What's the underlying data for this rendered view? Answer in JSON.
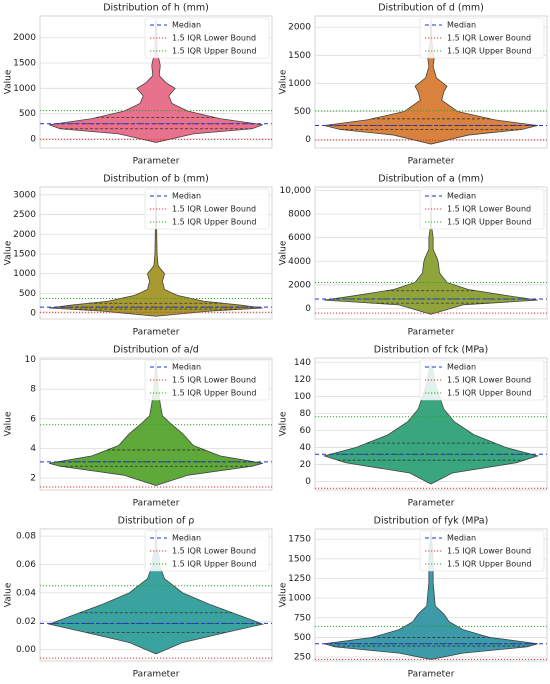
{
  "chart_data": [
    {
      "type": "violin",
      "title": "Distribution of h (mm)",
      "xlabel": "Parameter",
      "ylabel": "Value",
      "color": "#e8718b",
      "ylim": [
        -180,
        2430
      ],
      "yticks": [
        0,
        500,
        1000,
        1500,
        2000
      ],
      "grid": true,
      "legend": "upper right",
      "violin": {
        "y": [
          -70,
          100,
          200,
          280,
          400,
          550,
          700,
          850,
          1000,
          1100,
          1250,
          1450,
          1550,
          1700,
          2000,
          2350
        ],
        "width": [
          0,
          0.35,
          0.9,
          1,
          0.6,
          0.3,
          0.15,
          0.12,
          0.18,
          0.1,
          0.03,
          0.04,
          0.03,
          0.01,
          0.01,
          0
        ]
      },
      "quartiles": [
        200,
        300,
        420
      ],
      "lines": [
        {
          "name": "Median",
          "value": 300,
          "color": "#2233cc",
          "style": "dashed"
        },
        {
          "name": "1.5 IQR Lower Bound",
          "value": -10,
          "color": "#e03030",
          "style": "dotted"
        },
        {
          "name": "1.5 IQR Upper Bound",
          "value": 560,
          "color": "#30a030",
          "style": "dotted"
        }
      ]
    },
    {
      "type": "violin",
      "title": "Distribution of d (mm)",
      "xlabel": "Parameter",
      "ylabel": "Value",
      "color": "#d9823e",
      "ylim": [
        -150,
        2200
      ],
      "yticks": [
        0,
        500,
        1000,
        1500,
        2000
      ],
      "grid": true,
      "legend": "upper right",
      "violin": {
        "y": [
          -80,
          80,
          180,
          250,
          350,
          500,
          700,
          850,
          950,
          1100,
          1300,
          1450,
          1700,
          2150
        ],
        "width": [
          0,
          0.35,
          0.85,
          1,
          0.6,
          0.25,
          0.1,
          0.12,
          0.15,
          0.05,
          0.02,
          0.03,
          0.01,
          0
        ]
      },
      "quartiles": [
        180,
        250,
        370
      ],
      "lines": [
        {
          "name": "Median",
          "value": 250,
          "color": "#2233cc",
          "style": "dashed"
        },
        {
          "name": "1.5 IQR Lower Bound",
          "value": -10,
          "color": "#e03030",
          "style": "dotted"
        },
        {
          "name": "1.5 IQR Upper Bound",
          "value": 510,
          "color": "#30a030",
          "style": "dotted"
        }
      ]
    },
    {
      "type": "violin",
      "title": "Distribution of b (mm)",
      "xlabel": "Parameter",
      "ylabel": "Value",
      "color": "#a89a30",
      "ylim": [
        -150,
        3200
      ],
      "yticks": [
        0,
        500,
        1000,
        1500,
        2000,
        2500,
        3000
      ],
      "grid": true,
      "legend": "upper right",
      "violin": {
        "y": [
          -80,
          50,
          130,
          200,
          300,
          450,
          600,
          800,
          1000,
          1200,
          1500,
          3100
        ],
        "width": [
          0,
          0.5,
          1,
          0.8,
          0.45,
          0.2,
          0.08,
          0.06,
          0.08,
          0.02,
          0.01,
          0
        ]
      },
      "quartiles": [
        100,
        150,
        250
      ],
      "lines": [
        {
          "name": "Median",
          "value": 150,
          "color": "#2233cc",
          "style": "dashed"
        },
        {
          "name": "1.5 IQR Lower Bound",
          "value": 20,
          "color": "#e03030",
          "style": "dotted"
        },
        {
          "name": "1.5 IQR Upper Bound",
          "value": 370,
          "color": "#30a030",
          "style": "dotted"
        }
      ]
    },
    {
      "type": "violin",
      "title": "Distribution of a (mm)",
      "xlabel": "Parameter",
      "ylabel": "Value",
      "color": "#8fa53b",
      "ylim": [
        -900,
        10300
      ],
      "yticks": [
        0,
        2000,
        4000,
        6000,
        8000,
        {
          "value": 10000,
          "label": "10,000"
        }
      ],
      "grid": true,
      "legend": "upper right",
      "violin": {
        "y": [
          -500,
          300,
          700,
          1100,
          1600,
          2200,
          3000,
          3800,
          4200,
          5000,
          6000,
          7000,
          9800
        ],
        "width": [
          0,
          0.3,
          1,
          0.7,
          0.35,
          0.15,
          0.08,
          0.07,
          0.06,
          0.02,
          0.02,
          0.005,
          0
        ]
      },
      "quartiles": [
        450,
        800,
        1500
      ],
      "lines": [
        {
          "name": "Median",
          "value": 800,
          "color": "#2233cc",
          "style": "dashed"
        },
        {
          "name": "1.5 IQR Lower Bound",
          "value": -400,
          "color": "#e03030",
          "style": "dotted"
        },
        {
          "name": "1.5 IQR Upper Bound",
          "value": 2200,
          "color": "#30a030",
          "style": "dotted"
        }
      ]
    },
    {
      "type": "violin",
      "title": "Distribution of a/d",
      "xlabel": "Parameter",
      "ylabel": "Value",
      "color": "#5fa83a",
      "ylim": [
        1.2,
        10.1
      ],
      "yticks": [
        2,
        4,
        6,
        8,
        10
      ],
      "grid": true,
      "legend": "upper right",
      "violin": {
        "y": [
          1.5,
          2.2,
          2.8,
          3.0,
          3.5,
          4.2,
          5,
          5.6,
          6.2,
          7,
          8,
          9,
          9.9
        ],
        "width": [
          0,
          0.3,
          0.9,
          1,
          0.6,
          0.35,
          0.25,
          0.15,
          0.06,
          0.04,
          0.02,
          0.01,
          0
        ]
      },
      "quartiles": [
        2.8,
        3.1,
        3.9
      ],
      "lines": [
        {
          "name": "Median",
          "value": 3.1,
          "color": "#2233cc",
          "style": "dashed"
        },
        {
          "name": "1.5 IQR Lower Bound",
          "value": 1.4,
          "color": "#e03030",
          "style": "dotted"
        },
        {
          "name": "1.5 IQR Upper Bound",
          "value": 5.6,
          "color": "#30a030",
          "style": "dotted"
        }
      ]
    },
    {
      "type": "violin",
      "title": "Distribution of fck (MPa)",
      "xlabel": "Parameter",
      "ylabel": "Value",
      "color": "#3aa67e",
      "ylim": [
        -10,
        145
      ],
      "yticks": [
        0,
        20,
        40,
        60,
        80,
        100,
        120,
        140
      ],
      "grid": true,
      "legend": "upper right",
      "violin": {
        "y": [
          -3,
          10,
          22,
          30,
          40,
          55,
          70,
          85,
          100,
          115,
          130,
          137
        ],
        "width": [
          0,
          0.2,
          0.8,
          1,
          0.7,
          0.4,
          0.22,
          0.12,
          0.08,
          0.04,
          0.02,
          0
        ]
      },
      "quartiles": [
        25,
        32,
        45
      ],
      "lines": [
        {
          "name": "Median",
          "value": 32,
          "color": "#2233cc",
          "style": "dashed"
        },
        {
          "name": "1.5 IQR Lower Bound",
          "value": -8,
          "color": "#e03030",
          "style": "dotted"
        },
        {
          "name": "1.5 IQR Upper Bound",
          "value": 76,
          "color": "#30a030",
          "style": "dotted"
        }
      ]
    },
    {
      "type": "violin",
      "title": "Distribution of ρ",
      "xlabel": "Parameter",
      "ylabel": "Value",
      "color": "#3aa3a0",
      "ylim": [
        -0.008,
        0.085
      ],
      "yticks": [
        {
          "value": 0,
          "label": "0.00"
        },
        {
          "value": 0.02,
          "label": "0.02"
        },
        {
          "value": 0.04,
          "label": "0.04"
        },
        {
          "value": 0.06,
          "label": "0.06"
        },
        {
          "value": 0.08,
          "label": "0.08"
        }
      ],
      "grid": true,
      "legend": "upper right",
      "violin": {
        "y": [
          -0.003,
          0.005,
          0.012,
          0.018,
          0.025,
          0.032,
          0.04,
          0.05,
          0.06,
          0.065,
          0.07,
          0.084
        ],
        "width": [
          0,
          0.25,
          0.65,
          1,
          0.75,
          0.5,
          0.25,
          0.08,
          0.03,
          0.03,
          0.01,
          0
        ]
      },
      "quartiles": [
        0.012,
        0.0185,
        0.026
      ],
      "lines": [
        {
          "name": "Median",
          "value": 0.0185,
          "color": "#2233cc",
          "style": "dashed"
        },
        {
          "name": "1.5 IQR Lower Bound",
          "value": -0.006,
          "color": "#e03030",
          "style": "dotted"
        },
        {
          "name": "1.5 IQR Upper Bound",
          "value": 0.045,
          "color": "#30a030",
          "style": "dotted"
        }
      ]
    },
    {
      "type": "violin",
      "title": "Distribution of fyk (MPa)",
      "xlabel": "Parameter",
      "ylabel": "Value",
      "color": "#3d9aa8",
      "ylim": [
        200,
        1880
      ],
      "yticks": [
        250,
        500,
        750,
        1000,
        1250,
        1500,
        1750
      ],
      "grid": true,
      "legend": "upper right",
      "violin": {
        "y": [
          220,
          300,
          380,
          420,
          500,
          600,
          700,
          800,
          900,
          1200,
          1500,
          1850
        ],
        "width": [
          0,
          0.3,
          0.9,
          1,
          0.55,
          0.3,
          0.17,
          0.12,
          0.04,
          0.02,
          0.02,
          0
        ]
      },
      "quartiles": [
        390,
        420,
        500
      ],
      "lines": [
        {
          "name": "Median",
          "value": 420,
          "color": "#2233cc",
          "style": "dashed"
        },
        {
          "name": "1.5 IQR Lower Bound",
          "value": 220,
          "color": "#e03030",
          "style": "dotted"
        },
        {
          "name": "1.5 IQR Upper Bound",
          "value": 640,
          "color": "#30a030",
          "style": "dotted"
        }
      ]
    }
  ]
}
